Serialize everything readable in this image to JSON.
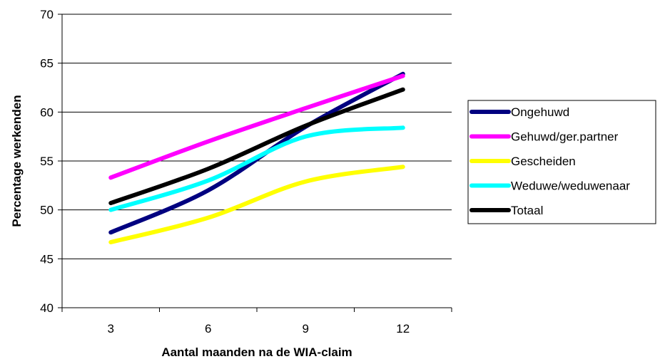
{
  "chart_data": {
    "type": "line",
    "title": "",
    "xlabel": "Aantal maanden na de WIA-claim",
    "ylabel": "Percentage werkenden",
    "categories": [
      "3",
      "6",
      "9",
      "12"
    ],
    "ylim": [
      40,
      70
    ],
    "yticks": [
      40,
      45,
      50,
      55,
      60,
      65,
      70
    ],
    "grid": "horizontal",
    "legend_position": "right",
    "series": [
      {
        "name": "Ongehuwd",
        "color": "#000080",
        "values": [
          47.7,
          52.0,
          58.5,
          63.9
        ]
      },
      {
        "name": "Gehuwd/ger.partner",
        "color": "#FF00FF",
        "values": [
          53.3,
          57.0,
          60.4,
          63.7
        ]
      },
      {
        "name": "Gescheiden",
        "color": "#FFFF00",
        "values": [
          46.7,
          49.2,
          52.9,
          54.4
        ]
      },
      {
        "name": "Weduwe/weduwenaar",
        "color": "#00FFFF",
        "values": [
          50.0,
          53.0,
          57.5,
          58.4
        ]
      },
      {
        "name": "Totaal",
        "color": "#000000",
        "values": [
          50.7,
          54.2,
          58.6,
          62.3
        ]
      }
    ]
  }
}
